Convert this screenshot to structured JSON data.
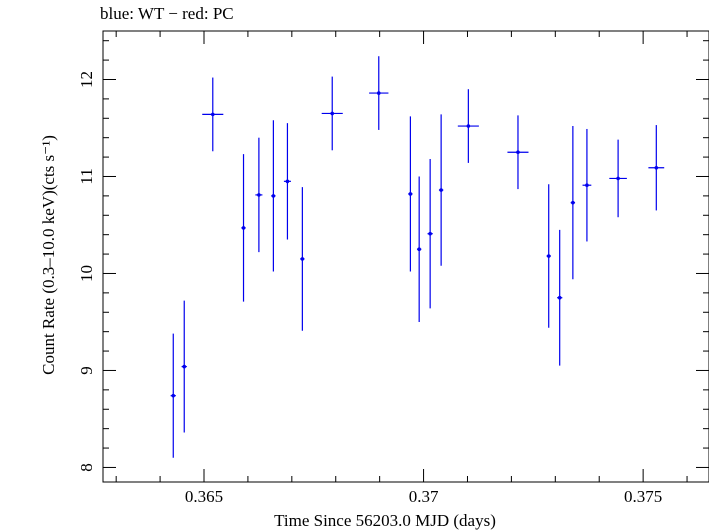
{
  "title": "blue: WT − red: PC",
  "chart_data": {
    "type": "scatter",
    "title": "blue: WT − red: PC",
    "xlabel": "Time Since 56203.0 MJD (days)",
    "ylabel": "Count Rate (0.3–10.0 keV)(cts s⁻¹)",
    "xlim": [
      0.3627,
      0.3765
    ],
    "ylim": [
      7.85,
      12.5
    ],
    "x_ticks": [
      0.365,
      0.37,
      0.375
    ],
    "x_tick_labels": [
      "0.365",
      "0.37",
      "0.375"
    ],
    "y_ticks": [
      8,
      9,
      10,
      11,
      12
    ],
    "y_tick_labels": [
      "8",
      "9",
      "10",
      "11",
      "12"
    ],
    "grid": false,
    "series_color": "#0000ee",
    "series": [
      {
        "points": [
          {
            "x": 0.3643,
            "xerr": 6e-05,
            "y": 8.74,
            "yerr": 0.64
          },
          {
            "x": 0.36455,
            "xerr": 6e-05,
            "y": 9.04,
            "yerr": 0.68
          },
          {
            "x": 0.3652,
            "xerr": 0.00024,
            "y": 11.64,
            "yerr": 0.38
          },
          {
            "x": 0.3659,
            "xerr": 5e-05,
            "y": 10.47,
            "yerr": 0.76
          },
          {
            "x": 0.36625,
            "xerr": 8e-05,
            "y": 10.81,
            "yerr": 0.59
          },
          {
            "x": 0.36658,
            "xerr": 5e-05,
            "y": 10.8,
            "yerr": 0.78
          },
          {
            "x": 0.3669,
            "xerr": 8e-05,
            "y": 10.95,
            "yerr": 0.6
          },
          {
            "x": 0.36724,
            "xerr": 5e-05,
            "y": 10.15,
            "yerr": 0.74
          },
          {
            "x": 0.36792,
            "xerr": 0.00024,
            "y": 11.65,
            "yerr": 0.38
          },
          {
            "x": 0.36898,
            "xerr": 0.00022,
            "y": 11.86,
            "yerr": 0.38
          },
          {
            "x": 0.3697,
            "xerr": 5e-05,
            "y": 10.82,
            "yerr": 0.8
          },
          {
            "x": 0.3699,
            "xerr": 5e-05,
            "y": 10.25,
            "yerr": 0.75
          },
          {
            "x": 0.37015,
            "xerr": 6e-05,
            "y": 10.41,
            "yerr": 0.77
          },
          {
            "x": 0.3704,
            "xerr": 5e-05,
            "y": 10.86,
            "yerr": 0.78
          },
          {
            "x": 0.37102,
            "xerr": 0.00024,
            "y": 11.52,
            "yerr": 0.38
          },
          {
            "x": 0.37215,
            "xerr": 0.00024,
            "y": 11.25,
            "yerr": 0.38
          },
          {
            "x": 0.37285,
            "xerr": 5e-05,
            "y": 10.18,
            "yerr": 0.74
          },
          {
            "x": 0.3731,
            "xerr": 6e-05,
            "y": 9.75,
            "yerr": 0.7
          },
          {
            "x": 0.3734,
            "xerr": 5e-05,
            "y": 10.73,
            "yerr": 0.79
          },
          {
            "x": 0.37372,
            "xerr": 0.0001,
            "y": 10.91,
            "yerr": 0.58
          },
          {
            "x": 0.37443,
            "xerr": 0.0002,
            "y": 10.98,
            "yerr": 0.4
          },
          {
            "x": 0.3753,
            "xerr": 0.00018,
            "y": 11.09,
            "yerr": 0.44
          }
        ]
      }
    ]
  }
}
